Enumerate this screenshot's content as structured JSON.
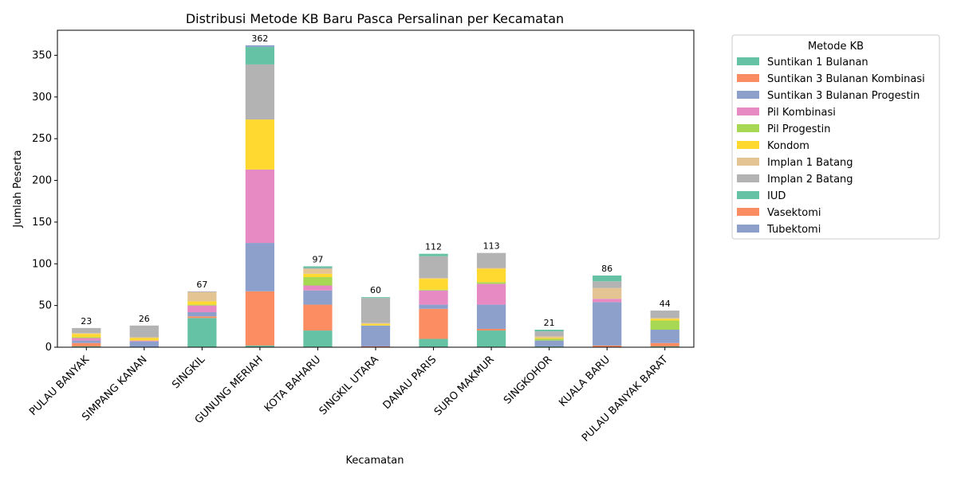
{
  "chart_data": {
    "type": "bar",
    "stacked": true,
    "title": "Distribusi Metode KB Baru Pasca Persalinan per Kecamatan",
    "xlabel": "Kecamatan",
    "ylabel": "Jumlah Peserta",
    "ylim": [
      0,
      380
    ],
    "yticks": [
      0,
      50,
      100,
      150,
      200,
      250,
      300,
      350
    ],
    "grid": false,
    "legend": {
      "title": "Metode KB",
      "placement": "outside-right"
    },
    "categories": [
      "PULAU BANYAK",
      "SIMPANG KANAN",
      "SINGKIL",
      "GUNUNG MERIAH",
      "KOTA BAHARU",
      "SINGKIL UTARA",
      "DANAU PARIS",
      "SURO MAKMUR",
      "SINGKOHOR",
      "KUALA BARU",
      "PULAU BANYAK BARAT"
    ],
    "totals": [
      23,
      26,
      67,
      362,
      97,
      60,
      112,
      113,
      21,
      86,
      44
    ],
    "series": [
      {
        "name": "Suntikan 1 Bulanan",
        "color": "#66c2a5",
        "values": [
          1,
          0,
          35,
          2,
          20,
          0,
          10,
          20,
          1,
          0,
          1
        ]
      },
      {
        "name": "Suntikan 3 Bulanan Kombinasi",
        "color": "#fc8d62",
        "values": [
          4,
          0,
          2,
          65,
          31,
          1,
          36,
          2,
          0,
          2,
          4
        ]
      },
      {
        "name": "Suntikan 3 Bulanan Progestin",
        "color": "#8da0cb",
        "values": [
          3,
          7,
          5,
          58,
          17,
          25,
          5,
          29,
          7,
          52,
          16
        ]
      },
      {
        "name": "Pil Kombinasi",
        "color": "#e78ac3",
        "values": [
          3,
          1,
          8,
          88,
          6,
          0,
          17,
          25,
          0,
          4,
          0
        ]
      },
      {
        "name": "Pil Progestin",
        "color": "#a6d854",
        "values": [
          1,
          0,
          1,
          0,
          10,
          0,
          1,
          2,
          2,
          0,
          11
        ]
      },
      {
        "name": "Kondom",
        "color": "#ffd92f",
        "values": [
          4,
          3,
          4,
          60,
          4,
          2,
          13,
          16,
          1,
          0,
          2
        ]
      },
      {
        "name": "Implan 1 Batang",
        "color": "#e5c494",
        "values": [
          1,
          1,
          11,
          0,
          6,
          1,
          1,
          1,
          2,
          13,
          1
        ]
      },
      {
        "name": "Implan 2 Batang",
        "color": "#b3b3b3",
        "values": [
          6,
          14,
          1,
          66,
          1,
          30,
          26,
          18,
          6,
          8,
          9
        ]
      },
      {
        "name": "IUD",
        "color": "#66c2a5",
        "values": [
          0,
          0,
          0,
          21,
          2,
          1,
          3,
          0,
          2,
          7,
          0
        ]
      },
      {
        "name": "Vasektomi",
        "color": "#fc8d62",
        "values": [
          0,
          0,
          0,
          0,
          0,
          0,
          0,
          0,
          0,
          0,
          0
        ]
      },
      {
        "name": "Tubektomi",
        "color": "#8da0cb",
        "values": [
          0,
          0,
          0,
          2,
          0,
          0,
          0,
          0,
          0,
          0,
          0
        ]
      }
    ]
  }
}
